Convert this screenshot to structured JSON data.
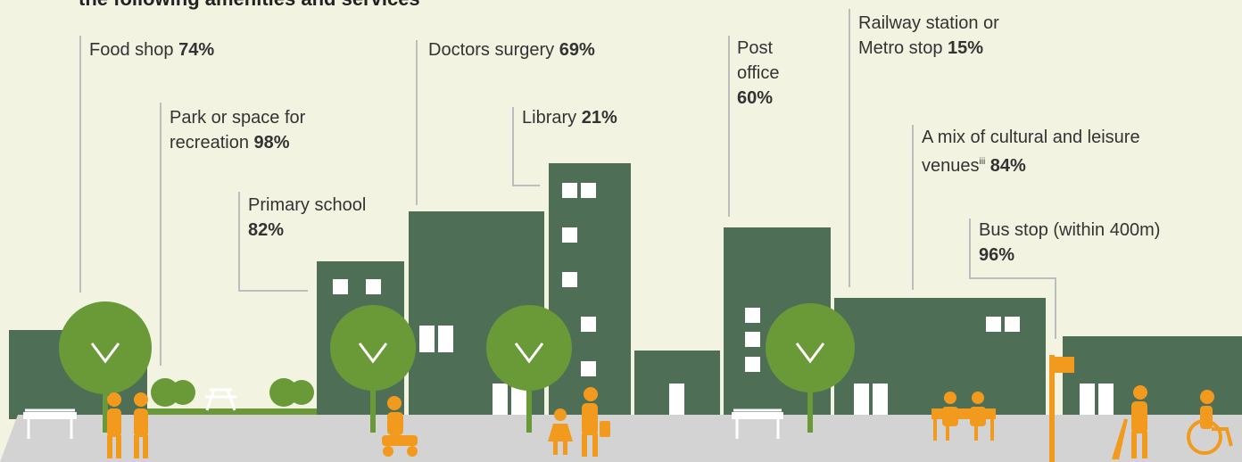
{
  "header": {
    "title": "the following amenities and services"
  },
  "labels": [
    {
      "name": "Food shop",
      "value": "74%"
    },
    {
      "name": "Park or space for recreation",
      "value": "98%"
    },
    {
      "name": "Primary school",
      "value": "82%"
    },
    {
      "name": "Doctors surgery",
      "value": "69%"
    },
    {
      "name": "Library",
      "value": "21%"
    },
    {
      "name": "Post office",
      "value": "60%"
    },
    {
      "name": "Railway station or Metro stop",
      "value": "15%"
    },
    {
      "name": "A mix of cultural and leisure venues",
      "sup": "iii",
      "value": "84%"
    },
    {
      "name": "Bus stop (within 400m)",
      "value": "96%"
    }
  ]
}
